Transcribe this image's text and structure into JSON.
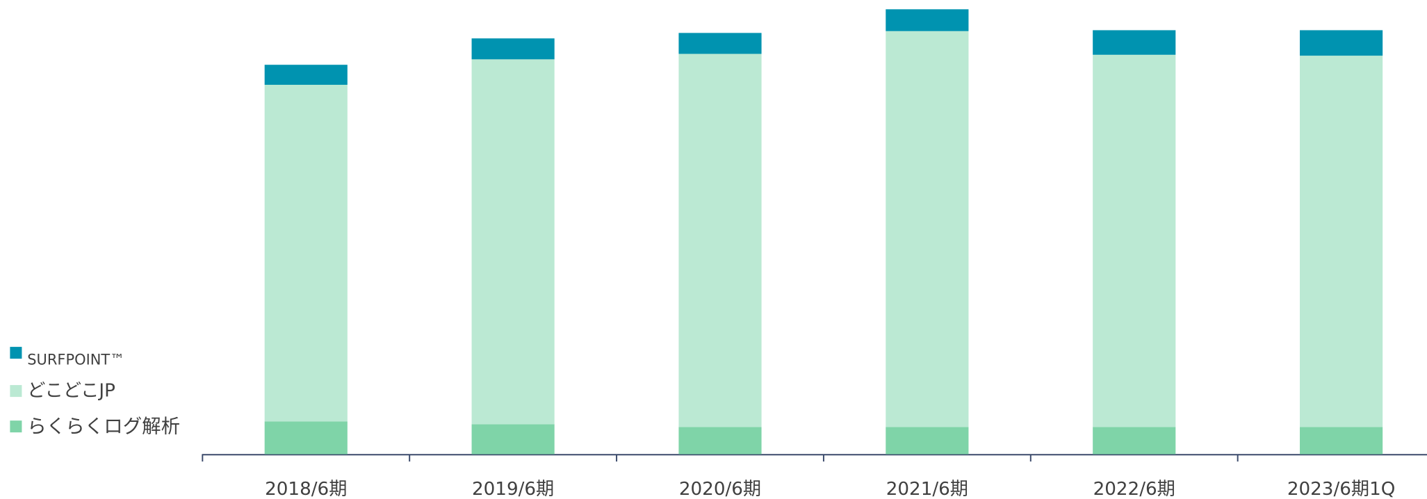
{
  "chart_data": {
    "type": "stacked_bar",
    "categories": [
      "2018/6期",
      "2019/6期",
      "2020/6期",
      "2021/6期",
      "2022/6期",
      "2023/6期1Q"
    ],
    "series": [
      {
        "name": "らくらくログ解析",
        "color": "#7fd4a8",
        "values": [
          36,
          33,
          30,
          30,
          30,
          30
        ]
      },
      {
        "name": "どこどこJP",
        "color": "#bbe9d3",
        "values": [
          370,
          401,
          410,
          435,
          409,
          408
        ]
      },
      {
        "name": "SURFPOINT™",
        "color": "#0093b0",
        "values": [
          22,
          23,
          23,
          24,
          27,
          28
        ]
      }
    ],
    "ylim": [
      0,
      499
    ],
    "legend": "left"
  }
}
